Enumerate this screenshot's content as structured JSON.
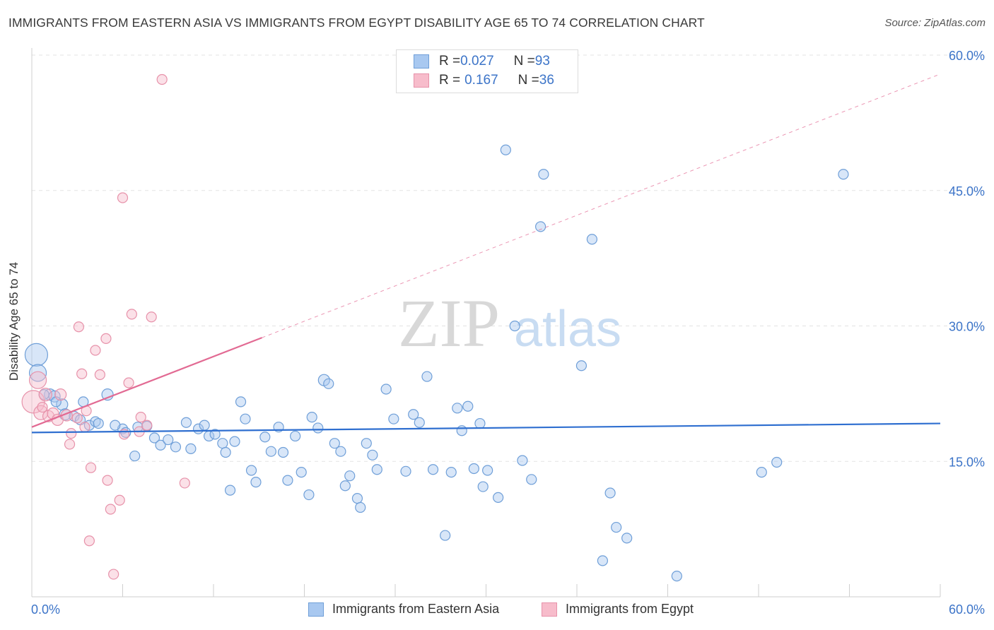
{
  "header": {
    "title": "IMMIGRANTS FROM EASTERN ASIA VS IMMIGRANTS FROM EGYPT DISABILITY AGE 65 TO 74 CORRELATION CHART",
    "source": "Source: ZipAtlas.com"
  },
  "watermark": {
    "zip": "ZIP",
    "atlas": "atlas"
  },
  "legend": {
    "rows": [
      {
        "r_label": "R = ",
        "r_value": "0.027",
        "n_label": "N = ",
        "n_value": "93",
        "color": "#a8c8f0",
        "border": "#6f9fd8"
      },
      {
        "r_label": "R = ",
        "r_value": "0.167",
        "n_label": "N = ",
        "n_value": "36",
        "color": "#f7bccb",
        "border": "#e792aa"
      }
    ]
  },
  "bottom_legend": [
    {
      "label": "Immigrants from Eastern Asia",
      "color": "#a8c8f0",
      "border": "#6f9fd8"
    },
    {
      "label": "Immigrants from Egypt",
      "color": "#f7bccb",
      "border": "#e792aa"
    }
  ],
  "chart_data": {
    "type": "scatter",
    "title": "IMMIGRANTS FROM EASTERN ASIA VS IMMIGRANTS FROM EGYPT DISABILITY AGE 65 TO 74 CORRELATION CHART",
    "xlabel": "",
    "ylabel": "Disability Age 65 to 74",
    "xlim": [
      0,
      60
    ],
    "ylim": [
      0,
      60
    ],
    "x_tick_labels": [
      "0.0%",
      "60.0%"
    ],
    "y_tick_labels": [
      "15.0%",
      "30.0%",
      "45.0%",
      "60.0%"
    ],
    "y_ticks": [
      15,
      30,
      45,
      60
    ],
    "grid": true,
    "series": [
      {
        "name": "Immigrants from Eastern Asia",
        "color": "#6f9fd8",
        "fill": "#a8c8f0",
        "trend": {
          "x": [
            0,
            60
          ],
          "y": [
            18.2,
            19.2
          ],
          "color": "#2f6fd0"
        },
        "points": [
          [
            0.3,
            26.8,
            16
          ],
          [
            0.4,
            24.8,
            12
          ],
          [
            1.2,
            22.4,
            8
          ],
          [
            1.5,
            22.2,
            8
          ],
          [
            2.0,
            21.3,
            8
          ],
          [
            2.2,
            20.2,
            8
          ],
          [
            2.8,
            20.0,
            7
          ],
          [
            3.2,
            19.6,
            7
          ],
          [
            3.4,
            21.6,
            7
          ],
          [
            3.8,
            19.0,
            7
          ],
          [
            4.2,
            19.4,
            7
          ],
          [
            4.4,
            19.2,
            7
          ],
          [
            5.0,
            22.4,
            8
          ],
          [
            6.0,
            18.6,
            7
          ],
          [
            6.2,
            18.2,
            7
          ],
          [
            6.8,
            15.6,
            7
          ],
          [
            7.0,
            18.8,
            7
          ],
          [
            7.6,
            18.9,
            7
          ],
          [
            8.1,
            17.6,
            7
          ],
          [
            8.5,
            16.8,
            7
          ],
          [
            9.0,
            17.4,
            7
          ],
          [
            9.5,
            16.6,
            7
          ],
          [
            10.2,
            19.3,
            7
          ],
          [
            10.5,
            16.4,
            7
          ],
          [
            11.0,
            18.6,
            7
          ],
          [
            11.4,
            19.0,
            7
          ],
          [
            11.7,
            17.8,
            7
          ],
          [
            12.1,
            18.0,
            7
          ],
          [
            12.6,
            17.0,
            7
          ],
          [
            12.8,
            16.0,
            7
          ],
          [
            13.1,
            11.8,
            7
          ],
          [
            13.4,
            17.2,
            7
          ],
          [
            13.8,
            21.6,
            7
          ],
          [
            14.1,
            19.7,
            7
          ],
          [
            14.5,
            14.0,
            7
          ],
          [
            14.8,
            12.7,
            7
          ],
          [
            15.4,
            17.7,
            7
          ],
          [
            15.8,
            16.1,
            7
          ],
          [
            16.3,
            18.8,
            7
          ],
          [
            16.6,
            16.0,
            7
          ],
          [
            16.9,
            12.9,
            7
          ],
          [
            17.4,
            17.8,
            7
          ],
          [
            17.8,
            13.8,
            7
          ],
          [
            18.3,
            11.3,
            7
          ],
          [
            18.5,
            19.9,
            7
          ],
          [
            18.9,
            18.7,
            7
          ],
          [
            19.3,
            24.0,
            8
          ],
          [
            19.6,
            23.6,
            7
          ],
          [
            20.0,
            17.0,
            7
          ],
          [
            20.4,
            16.1,
            7
          ],
          [
            20.7,
            12.3,
            7
          ],
          [
            21.0,
            13.4,
            7
          ],
          [
            21.5,
            10.9,
            7
          ],
          [
            21.7,
            9.9,
            7
          ],
          [
            22.1,
            17.0,
            7
          ],
          [
            22.5,
            15.7,
            7
          ],
          [
            22.8,
            14.1,
            7
          ],
          [
            23.4,
            23.0,
            7
          ],
          [
            23.9,
            19.7,
            7
          ],
          [
            24.7,
            13.9,
            7
          ],
          [
            25.2,
            20.2,
            7
          ],
          [
            25.6,
            19.3,
            7
          ],
          [
            26.1,
            24.4,
            7
          ],
          [
            26.5,
            14.1,
            7
          ],
          [
            27.3,
            6.8,
            7
          ],
          [
            27.7,
            13.8,
            7
          ],
          [
            28.1,
            20.9,
            7
          ],
          [
            28.4,
            18.4,
            7
          ],
          [
            28.8,
            21.1,
            7
          ],
          [
            29.2,
            14.2,
            7
          ],
          [
            29.6,
            19.2,
            7
          ],
          [
            29.8,
            12.2,
            7
          ],
          [
            30.1,
            14.0,
            7
          ],
          [
            30.8,
            11.0,
            7
          ],
          [
            31.3,
            49.5,
            7
          ],
          [
            31.9,
            30.0,
            7
          ],
          [
            32.4,
            15.1,
            7
          ],
          [
            33.0,
            13.0,
            7
          ],
          [
            33.6,
            41.0,
            7
          ],
          [
            33.8,
            46.8,
            7
          ],
          [
            36.3,
            25.6,
            7
          ],
          [
            37.0,
            39.6,
            7
          ],
          [
            37.7,
            4.0,
            7
          ],
          [
            38.2,
            11.5,
            7
          ],
          [
            38.6,
            7.7,
            7
          ],
          [
            39.3,
            6.5,
            7
          ],
          [
            42.6,
            2.3,
            7
          ],
          [
            48.2,
            13.8,
            7
          ],
          [
            49.2,
            14.9,
            7
          ],
          [
            53.6,
            46.8,
            7
          ],
          [
            0.8,
            22.4,
            7
          ],
          [
            1.6,
            21.6,
            7
          ],
          [
            5.5,
            19.0,
            7
          ]
        ]
      },
      {
        "name": "Immigrants from Egypt",
        "color": "#e792aa",
        "fill": "#f7bccb",
        "trend": {
          "x": [
            0,
            15.2
          ],
          "y": [
            18.8,
            28.7
          ],
          "dash_to": [
            60,
            57.9
          ],
          "color": "#e26a93"
        },
        "points": [
          [
            0.1,
            21.6,
            16
          ],
          [
            0.4,
            24.0,
            12
          ],
          [
            0.6,
            20.4,
            10
          ],
          [
            0.9,
            22.4,
            9
          ],
          [
            1.1,
            20.0,
            8
          ],
          [
            1.4,
            20.3,
            8
          ],
          [
            1.7,
            19.6,
            8
          ],
          [
            1.9,
            22.4,
            8
          ],
          [
            2.3,
            20.1,
            8
          ],
          [
            2.5,
            16.9,
            7
          ],
          [
            2.6,
            18.1,
            7
          ],
          [
            3.0,
            19.8,
            7
          ],
          [
            3.1,
            29.9,
            7
          ],
          [
            3.3,
            24.7,
            7
          ],
          [
            3.5,
            18.8,
            7
          ],
          [
            3.6,
            20.6,
            7
          ],
          [
            3.8,
            6.2,
            7
          ],
          [
            3.9,
            14.3,
            7
          ],
          [
            4.2,
            27.3,
            7
          ],
          [
            4.5,
            24.6,
            7
          ],
          [
            4.9,
            28.6,
            7
          ],
          [
            5.0,
            12.9,
            7
          ],
          [
            5.2,
            9.7,
            7
          ],
          [
            5.4,
            2.5,
            7
          ],
          [
            5.8,
            10.7,
            7
          ],
          [
            6.0,
            44.2,
            7
          ],
          [
            6.1,
            18.0,
            7
          ],
          [
            6.4,
            23.7,
            7
          ],
          [
            6.6,
            31.3,
            7
          ],
          [
            7.1,
            18.3,
            7
          ],
          [
            7.2,
            19.9,
            7
          ],
          [
            7.6,
            19.0,
            7
          ],
          [
            7.9,
            31.0,
            7
          ],
          [
            8.6,
            57.3,
            7
          ],
          [
            10.1,
            12.6,
            7
          ],
          [
            0.7,
            21.0,
            7
          ]
        ]
      }
    ]
  }
}
